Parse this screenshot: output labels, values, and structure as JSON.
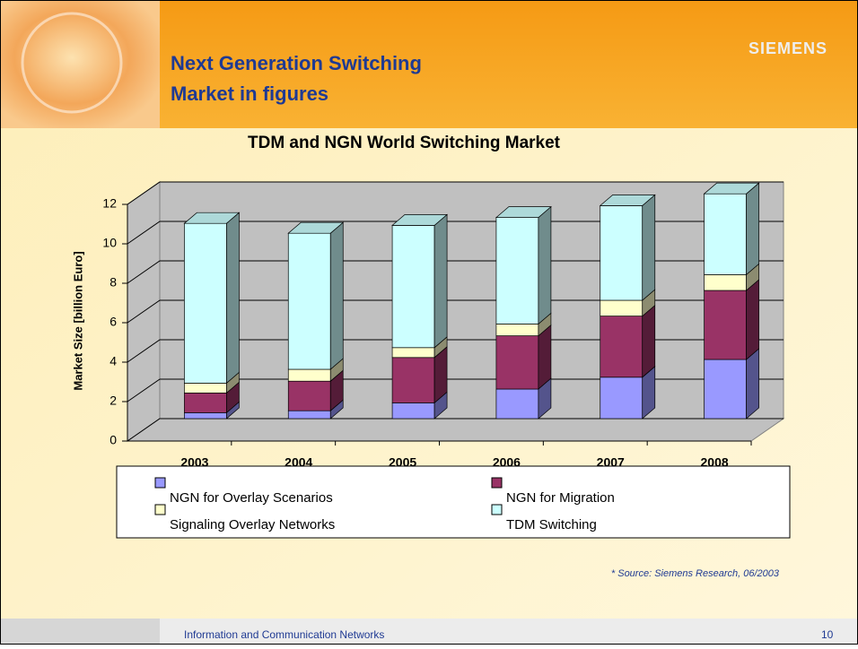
{
  "header": {
    "title_lines": [
      "Next Generation Switching",
      "Market in figures"
    ],
    "logo": "SIEMENS"
  },
  "chart_data": {
    "type": "bar",
    "stacked": true,
    "title": "TDM and NGN World Switching Market",
    "y_label": "Market Size [billion Euro]",
    "categories": [
      "2003",
      "2004",
      "2005",
      "2006",
      "2007",
      "2008"
    ],
    "series": [
      {
        "name": "NGN for Overlay Scenarios",
        "color": "#9999ff",
        "values": [
          0.3,
          0.4,
          0.8,
          1.5,
          2.1,
          3.0
        ]
      },
      {
        "name": "NGN for Migration",
        "color": "#993366",
        "values": [
          1.0,
          1.5,
          2.3,
          2.7,
          3.1,
          3.5
        ]
      },
      {
        "name": "Signaling Overlay Networks",
        "color": "#ffffcc",
        "values": [
          0.5,
          0.6,
          0.5,
          0.6,
          0.8,
          0.8
        ]
      },
      {
        "name": "TDM Switching",
        "color": "#ccffff",
        "values": [
          8.1,
          6.9,
          6.2,
          5.4,
          4.8,
          4.1
        ]
      }
    ],
    "ylim": [
      0,
      12
    ],
    "yticks": [
      0,
      2,
      4,
      6,
      8,
      10,
      12
    ],
    "grid": true,
    "legend": "bottom"
  },
  "source": "* Source: Siemens Research, 06/2003",
  "footer": {
    "text": "Information and Communication Networks",
    "page": "10"
  }
}
